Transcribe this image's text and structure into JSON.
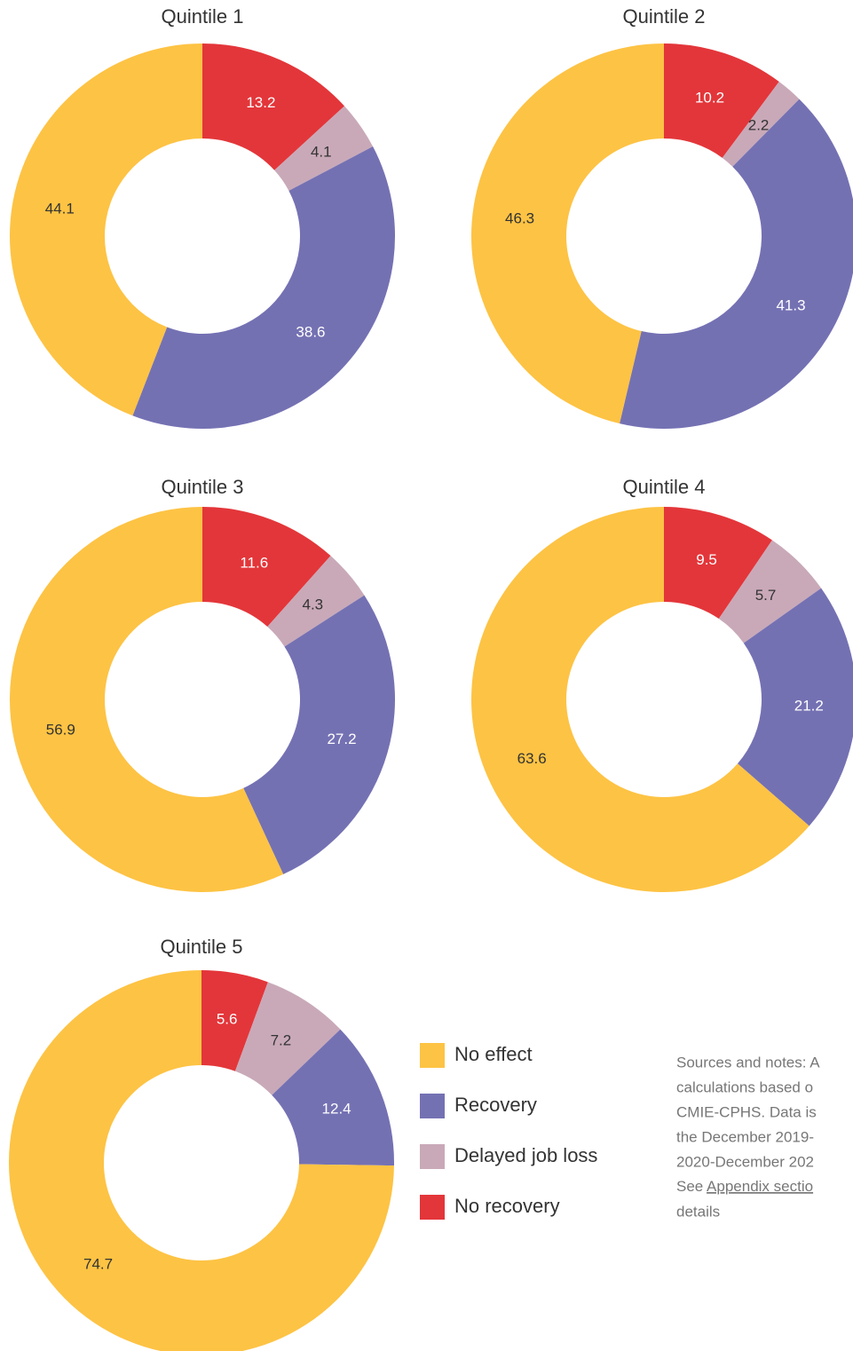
{
  "chart_data": [
    {
      "type": "pie",
      "title": "Quintile 1",
      "categories": [
        "No recovery",
        "Delayed job loss",
        "Recovery",
        "No effect"
      ],
      "values": [
        13.2,
        4.1,
        38.6,
        44.1
      ],
      "colors": [
        "#e3363a",
        "#c9a9b8",
        "#7471b3",
        "#fdc344"
      ]
    },
    {
      "type": "pie",
      "title": "Quintile 2",
      "categories": [
        "No recovery",
        "Delayed job loss",
        "Recovery",
        "No effect"
      ],
      "values": [
        10.2,
        2.2,
        41.3,
        46.3
      ],
      "colors": [
        "#e3363a",
        "#c9a9b8",
        "#7471b3",
        "#fdc344"
      ]
    },
    {
      "type": "pie",
      "title": "Quintile 3",
      "categories": [
        "No recovery",
        "Delayed job loss",
        "Recovery",
        "No effect"
      ],
      "values": [
        11.6,
        4.3,
        27.2,
        56.9
      ],
      "colors": [
        "#e3363a",
        "#c9a9b8",
        "#7471b3",
        "#fdc344"
      ]
    },
    {
      "type": "pie",
      "title": "Quintile 4",
      "categories": [
        "No recovery",
        "Delayed job loss",
        "Recovery",
        "No effect"
      ],
      "values": [
        9.5,
        5.7,
        21.2,
        63.6
      ],
      "colors": [
        "#e3363a",
        "#c9a9b8",
        "#7471b3",
        "#fdc344"
      ]
    },
    {
      "type": "pie",
      "title": "Quintile 5",
      "categories": [
        "No recovery",
        "Delayed job loss",
        "Recovery",
        "No effect"
      ],
      "values": [
        5.6,
        7.2,
        12.4,
        74.7
      ],
      "colors": [
        "#e3363a",
        "#c9a9b8",
        "#7471b3",
        "#fdc344"
      ]
    }
  ],
  "notes": {
    "lines": [
      "Sources and notes: A",
      "calculations based o",
      "CMIE-CPHS. Data is",
      "the December 2019-",
      "2020-December 202"
    ],
    "see": "See",
    "link": "Appendix sectio",
    "last": "details"
  }
}
